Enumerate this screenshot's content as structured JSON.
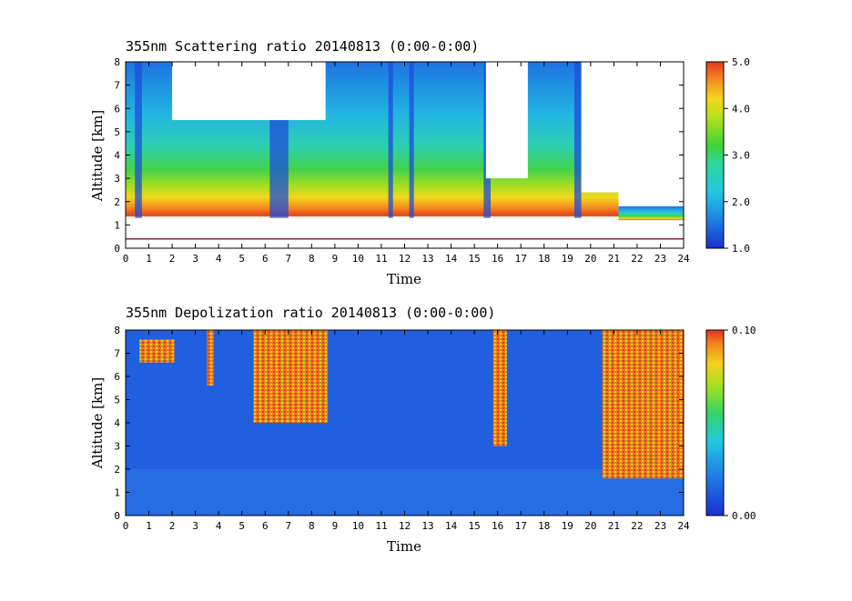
{
  "chart_data": [
    {
      "type": "heatmap",
      "title": "355nm Scattering ratio  20140813 (0:00-0:00)",
      "xlabel": "Time",
      "ylabel": "Altitude [km]",
      "xlim": [
        0,
        24
      ],
      "ylim": [
        0,
        8
      ],
      "x_ticks": [
        "0",
        "1",
        "2",
        "3",
        "4",
        "5",
        "6",
        "7",
        "8",
        "9",
        "10",
        "11",
        "12",
        "13",
        "14",
        "15",
        "16",
        "17",
        "18",
        "19",
        "20",
        "21",
        "22",
        "23",
        "24"
      ],
      "y_ticks": [
        "0",
        "1",
        "2",
        "3",
        "4",
        "5",
        "6",
        "7",
        "8"
      ],
      "colorbar": {
        "min": 1.0,
        "max": 5.0,
        "ticks": [
          "1.0",
          "2.0",
          "3.0",
          "4.0",
          "5.0"
        ]
      },
      "features": {
        "boundary_layer_top_km": 1.4,
        "ground_line_km": 0.4,
        "cloud_gaps_hours": [
          [
            0.4,
            0.7
          ],
          [
            6.2,
            7.0
          ],
          [
            11.3,
            11.5
          ],
          [
            12.2,
            12.4
          ],
          [
            15.4,
            15.7
          ],
          [
            19.3,
            19.6
          ]
        ],
        "no_data_regions": [
          {
            "t0": 2.0,
            "t1": 8.6,
            "z0": 5.5,
            "z1": 8.0
          },
          {
            "t0": 15.5,
            "t1": 17.3,
            "z0": 3.0,
            "z1": 8.0
          },
          {
            "t0": 19.6,
            "t1": 24.0,
            "z0": 2.4,
            "z1": 8.0
          },
          {
            "t0": 21.0,
            "t1": 24.0,
            "z0": 0.0,
            "z1": 1.2
          }
        ]
      }
    },
    {
      "type": "heatmap",
      "title": "355nm Depolization ratio  20140813 (0:00-0:00)",
      "xlabel": "Time",
      "ylabel": "Altitude [km]",
      "xlim": [
        0,
        24
      ],
      "ylim": [
        0,
        8
      ],
      "x_ticks": [
        "0",
        "1",
        "2",
        "3",
        "4",
        "5",
        "6",
        "7",
        "8",
        "9",
        "10",
        "11",
        "12",
        "13",
        "14",
        "15",
        "16",
        "17",
        "18",
        "19",
        "20",
        "21",
        "22",
        "23",
        "24"
      ],
      "y_ticks": [
        "0",
        "1",
        "2",
        "3",
        "4",
        "5",
        "6",
        "7",
        "8"
      ],
      "colorbar": {
        "min": 0.0,
        "max": 0.1,
        "ticks": [
          "0.00",
          "0.10"
        ]
      },
      "features": {
        "high_depol_regions": [
          {
            "t0": 5.5,
            "t1": 8.7,
            "z0": 4.0,
            "z1": 8.0
          },
          {
            "t0": 15.8,
            "t1": 16.4,
            "z0": 3.0,
            "z1": 8.0
          },
          {
            "t0": 20.5,
            "t1": 24.0,
            "z0": 1.6,
            "z1": 8.0
          },
          {
            "t0": 0.6,
            "t1": 2.1,
            "z0": 6.6,
            "z1": 7.6
          },
          {
            "t0": 3.5,
            "t1": 3.8,
            "z0": 5.6,
            "z1": 8.0
          }
        ],
        "background_value": 0.02
      }
    }
  ]
}
